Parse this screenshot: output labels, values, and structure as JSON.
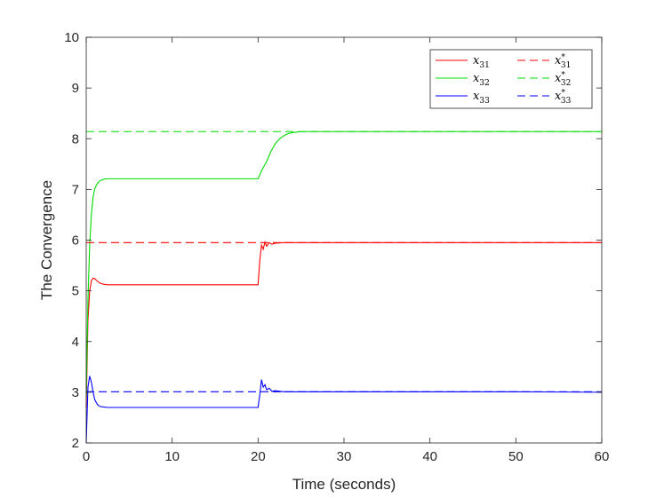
{
  "chart_data": {
    "type": "line",
    "xlabel": "Time (seconds)",
    "ylabel": "The Convergence",
    "xlim": [
      0,
      60
    ],
    "ylim": [
      2,
      10
    ],
    "xticks": [
      0,
      10,
      20,
      30,
      40,
      50,
      60
    ],
    "yticks": [
      2,
      3,
      4,
      5,
      6,
      7,
      8,
      9,
      10
    ],
    "grid": false,
    "legend_position": "top-right",
    "series": [
      {
        "name": "x_31",
        "legend_base": "x",
        "legend_sub": "31",
        "legend_sup": "",
        "color": "#ff0000",
        "style": "solid",
        "x": [
          0,
          0.2,
          0.4,
          0.6,
          0.8,
          1.0,
          1.3,
          1.6,
          2.0,
          2.5,
          3,
          5,
          10,
          15,
          20,
          20.2,
          20.4,
          20.6,
          20.8,
          21.0,
          21.3,
          21.6,
          22,
          23,
          25,
          30,
          40,
          50,
          60
        ],
        "y": [
          2.7,
          4.4,
          5.0,
          5.2,
          5.25,
          5.24,
          5.19,
          5.15,
          5.13,
          5.12,
          5.12,
          5.12,
          5.12,
          5.12,
          5.12,
          5.6,
          5.9,
          5.82,
          5.96,
          5.88,
          5.95,
          5.92,
          5.94,
          5.95,
          5.95,
          5.95,
          5.95,
          5.95,
          5.95
        ]
      },
      {
        "name": "x_32",
        "legend_base": "x",
        "legend_sub": "32",
        "legend_sup": "",
        "color": "#00dd00",
        "style": "solid",
        "x": [
          0,
          0.2,
          0.4,
          0.6,
          0.8,
          1.0,
          1.3,
          1.6,
          2.0,
          2.5,
          3,
          5,
          10,
          15,
          20,
          20.5,
          21,
          21.5,
          22,
          22.5,
          23,
          23.5,
          24,
          25,
          26,
          30,
          40,
          50,
          60
        ],
        "y": [
          2.9,
          4.8,
          5.9,
          6.5,
          6.85,
          7.02,
          7.12,
          7.17,
          7.2,
          7.21,
          7.21,
          7.21,
          7.21,
          7.21,
          7.21,
          7.4,
          7.55,
          7.75,
          7.9,
          8.0,
          8.06,
          8.1,
          8.12,
          8.14,
          8.14,
          8.14,
          8.14,
          8.14,
          8.14
        ]
      },
      {
        "name": "x_33",
        "legend_base": "x",
        "legend_sub": "33",
        "legend_sup": "",
        "color": "#0000ff",
        "style": "solid",
        "x": [
          0,
          0.2,
          0.4,
          0.6,
          0.8,
          1.0,
          1.3,
          1.6,
          2.0,
          2.5,
          3,
          5,
          10,
          15,
          20,
          20.2,
          20.4,
          20.6,
          20.8,
          21.0,
          21.3,
          21.6,
          22,
          23,
          25,
          30,
          40,
          50,
          60
        ],
        "y": [
          2.0,
          3.1,
          3.32,
          3.2,
          3.0,
          2.85,
          2.76,
          2.72,
          2.71,
          2.7,
          2.7,
          2.7,
          2.7,
          2.7,
          2.7,
          2.95,
          3.25,
          3.1,
          3.15,
          3.05,
          3.08,
          3.02,
          3.03,
          3.01,
          3.01,
          3.01,
          3.01,
          3.01,
          3.0
        ]
      },
      {
        "name": "x*_31",
        "legend_base": "x",
        "legend_sub": "31",
        "legend_sup": "*",
        "color": "#ff0000",
        "style": "dashed",
        "x": [
          0,
          60
        ],
        "y": [
          5.95,
          5.95
        ]
      },
      {
        "name": "x*_32",
        "legend_base": "x",
        "legend_sub": "32",
        "legend_sup": "*",
        "color": "#00dd00",
        "style": "dashed",
        "x": [
          0,
          60
        ],
        "y": [
          8.14,
          8.14
        ]
      },
      {
        "name": "x*_33",
        "legend_base": "x",
        "legend_sub": "33",
        "legend_sup": "*",
        "color": "#0000ff",
        "style": "dashed",
        "x": [
          0,
          60
        ],
        "y": [
          3.01,
          3.01
        ]
      }
    ]
  }
}
